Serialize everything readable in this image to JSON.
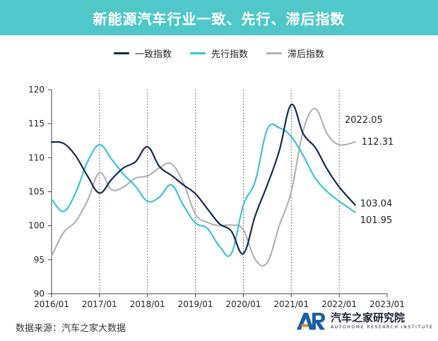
{
  "title": "新能源汽车行业一致、先行、滞后指数",
  "colors": {
    "title_bg": "#50c7c9",
    "coincident": "#172a4b",
    "leading": "#3dc3d4",
    "lagging": "#b3b3b3",
    "axis": "#444444"
  },
  "legend": [
    {
      "label": "一致指数",
      "color": "#172a4b"
    },
    {
      "label": "先行指数",
      "color": "#3dc3d4"
    },
    {
      "label": "滞后指数",
      "color": "#b3b3b3"
    }
  ],
  "chart_data": {
    "type": "line",
    "title": "新能源汽车行业一致、先行、滞后指数",
    "xlabel": "",
    "ylabel": "",
    "ylim": [
      90,
      120
    ],
    "xlim": [
      "2016-01",
      "2023-01"
    ],
    "y_ticks": [
      "90",
      "95",
      "100",
      "105",
      "110",
      "115",
      "120"
    ],
    "x_ticks": [
      "2016/01",
      "2017/01",
      "2018/01",
      "2019/01",
      "2020/01",
      "2021/01",
      "2022/01",
      "2023/01"
    ],
    "vertical_dashed_gridlines_at": [
      "2017-01",
      "2018-01",
      "2019-01",
      "2020-01",
      "2021-01",
      "2022-01"
    ],
    "grid": false,
    "legend_position": "top-center",
    "series": [
      {
        "name": "一致指数",
        "x": [
          "2016-01",
          "2016-04",
          "2016-07",
          "2016-10",
          "2017-01",
          "2017-04",
          "2017-07",
          "2017-10",
          "2018-01",
          "2018-04",
          "2018-07",
          "2018-10",
          "2019-01",
          "2019-04",
          "2019-07",
          "2019-10",
          "2020-01",
          "2020-04",
          "2020-07",
          "2020-10",
          "2021-01",
          "2021-04",
          "2021-07",
          "2021-10",
          "2022-01",
          "2022-05"
        ],
        "values": [
          112.3,
          112.1,
          110.3,
          107.3,
          104.8,
          106.8,
          108.5,
          109.4,
          111.6,
          108.7,
          107.4,
          106.0,
          104.7,
          102.5,
          100.3,
          99.2,
          95.9,
          101.5,
          106.0,
          111.0,
          117.8,
          113.5,
          111.5,
          108.3,
          105.7,
          103.04
        ]
      },
      {
        "name": "先行指数",
        "x": [
          "2016-01",
          "2016-04",
          "2016-07",
          "2016-10",
          "2017-01",
          "2017-04",
          "2017-07",
          "2017-10",
          "2018-01",
          "2018-04",
          "2018-07",
          "2018-10",
          "2019-01",
          "2019-04",
          "2019-07",
          "2019-10",
          "2020-01",
          "2020-04",
          "2020-07",
          "2020-10",
          "2021-01",
          "2021-04",
          "2021-07",
          "2021-10",
          "2022-01",
          "2022-05"
        ],
        "values": [
          103.9,
          102.1,
          104.8,
          109.4,
          111.9,
          109.8,
          107.6,
          105.8,
          103.6,
          104.2,
          106.0,
          103.0,
          100.4,
          99.6,
          97.0,
          95.9,
          103.0,
          106.6,
          114.2,
          114.4,
          113.1,
          110.3,
          107.0,
          105.0,
          103.6,
          101.95
        ]
      },
      {
        "name": "滞后指数",
        "x": [
          "2016-01",
          "2016-04",
          "2016-07",
          "2016-10",
          "2017-01",
          "2017-04",
          "2017-07",
          "2017-10",
          "2018-01",
          "2018-04",
          "2018-07",
          "2018-10",
          "2019-01",
          "2019-04",
          "2019-07",
          "2019-10",
          "2020-01",
          "2020-04",
          "2020-07",
          "2020-10",
          "2021-01",
          "2021-04",
          "2021-07",
          "2021-10",
          "2022-01",
          "2022-05"
        ],
        "values": [
          95.5,
          99.0,
          100.6,
          103.7,
          107.8,
          105.3,
          105.7,
          107.0,
          107.3,
          108.5,
          109.1,
          106.3,
          101.7,
          100.5,
          100.0,
          100.1,
          99.4,
          95.0,
          94.6,
          100.0,
          105.0,
          114.0,
          117.2,
          113.5,
          111.9,
          112.31
        ]
      }
    ],
    "annotations": [
      {
        "text": "2022.05"
      },
      {
        "text": "112.31",
        "series": "滞后指数"
      },
      {
        "text": "103.04",
        "series": "一致指数"
      },
      {
        "text": "101.95",
        "series": "先行指数"
      }
    ]
  },
  "source": "数据来源：汽车之家大数据",
  "logo": {
    "mark": "AR",
    "name": "汽车之家研究院",
    "subtitle": "AUTOHOME RESEARCH INSTITUTE"
  }
}
